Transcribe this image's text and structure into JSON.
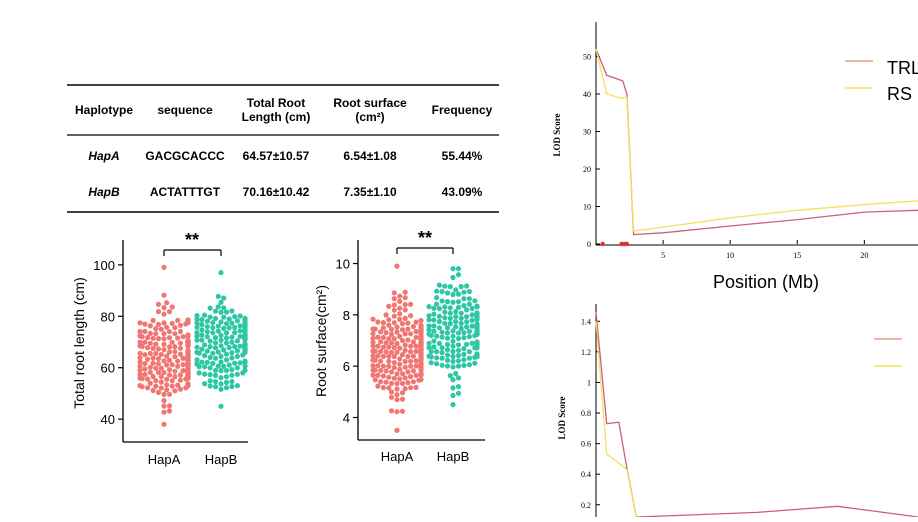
{
  "table": {
    "headers": [
      "Haplotype",
      "sequence",
      "Total Root\nLength (cm)",
      "Root surface\n(cm²)",
      "Frequency"
    ],
    "rows": [
      [
        "HapA",
        "GACGCACCC",
        "64.57±10.57",
        "6.54±1.08",
        "55.44%"
      ],
      [
        "HapB",
        "ACTATTTGT",
        "70.16±10.42",
        "7.35±1.10",
        "43.09%"
      ]
    ]
  },
  "chart_data": [
    {
      "type": "scatter",
      "subtype": "beeswarm",
      "ylabel": "Total root length (cm)",
      "categories": [
        "HapA",
        "HapB"
      ],
      "yticks": [
        40,
        60,
        80,
        100
      ],
      "ylim": [
        35,
        105
      ],
      "significance": "**",
      "colors": [
        "#f07672",
        "#2ec7a6"
      ],
      "summary": [
        {
          "name": "HapA",
          "mean": 64.57,
          "sd": 10.57,
          "min": 38,
          "max": 99,
          "n": 240
        },
        {
          "name": "HapB",
          "mean": 70.16,
          "sd": 10.42,
          "min": 45,
          "max": 97,
          "n": 190
        }
      ]
    },
    {
      "type": "scatter",
      "subtype": "beeswarm",
      "ylabel": "Root surface(cm²)",
      "categories": [
        "HapA",
        "HapB"
      ],
      "yticks": [
        4,
        6,
        8,
        10
      ],
      "ylim": [
        3.2,
        10.8
      ],
      "significance": "**",
      "colors": [
        "#f07672",
        "#2ec7a6"
      ],
      "summary": [
        {
          "name": "HapA",
          "mean": 6.54,
          "sd": 1.08,
          "min": 3.5,
          "max": 9.9,
          "n": 240
        },
        {
          "name": "HapB",
          "mean": 7.35,
          "sd": 1.1,
          "min": 4.5,
          "max": 9.8,
          "n": 190
        }
      ]
    },
    {
      "type": "line",
      "ylabel": "LOD Score",
      "xlabel": "Position (Mb)",
      "xticks": [
        5,
        10,
        15,
        20
      ],
      "yticks": [
        0,
        10,
        20,
        30,
        40,
        50
      ],
      "xlim": [
        0,
        24
      ],
      "ylim": [
        0,
        56
      ],
      "series": [
        {
          "name": "TRL",
          "color": "#c9607a",
          "x": [
            0,
            0.8,
            2.0,
            2.3,
            2.8,
            5,
            10,
            15,
            20,
            24
          ],
          "y": [
            52,
            45,
            43.5,
            40,
            2.5,
            3,
            4.8,
            6.5,
            8.5,
            9
          ]
        },
        {
          "name": "RS",
          "color": "#f2e25a",
          "x": [
            0,
            0.8,
            1.8,
            2.3,
            2.8,
            5,
            10,
            15,
            20,
            24
          ],
          "y": [
            52,
            40,
            39,
            39,
            3.5,
            4.5,
            7,
            9,
            10.5,
            11.5
          ]
        }
      ],
      "markers_x": [
        0.5,
        1.9,
        2.1,
        2.3
      ],
      "legend": [
        "TRL",
        "RS"
      ]
    },
    {
      "type": "line",
      "ylabel": "LOD Score",
      "yticks": [
        0.2,
        0.4,
        0.6,
        0.8,
        1.0,
        1.2,
        1.4
      ],
      "xlim": [
        0,
        24
      ],
      "ylim": [
        0.12,
        1.5
      ],
      "series": [
        {
          "color": "#c9607a",
          "x": [
            0,
            0.8,
            1.7,
            2.3,
            3,
            6,
            12,
            18,
            24
          ],
          "y": [
            1.46,
            0.73,
            0.74,
            0.44,
            0.12,
            0.13,
            0.15,
            0.19,
            0.12
          ]
        },
        {
          "color": "#f2e25a",
          "x": [
            0,
            0.8,
            1.6,
            2.3,
            3
          ],
          "y": [
            1.4,
            0.53,
            0.48,
            0.43,
            0.12
          ]
        }
      ]
    }
  ]
}
